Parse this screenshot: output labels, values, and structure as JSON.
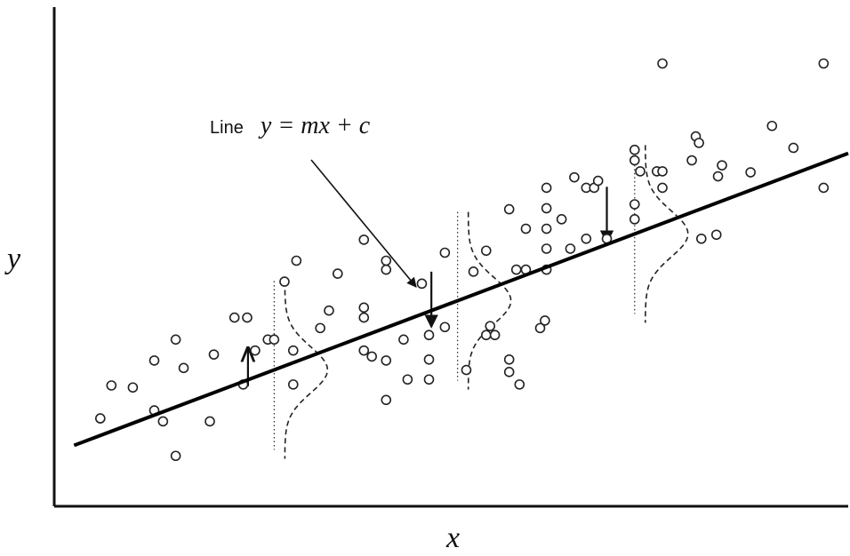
{
  "annotation": {
    "prefix": "Line",
    "equation": "y = mx + c"
  },
  "axes": {
    "x_label": "x",
    "y_label": "y"
  },
  "chart_data": {
    "type": "scatter",
    "xlim": [
      0,
      100
    ],
    "ylim": [
      0,
      100
    ],
    "regression": {
      "slope": 0.6,
      "intercept": 10.7
    },
    "points": [
      [
        5.8,
        17.6
      ],
      [
        7.2,
        24.2
      ],
      [
        9.9,
        23.8
      ],
      [
        12.6,
        19.2
      ],
      [
        12.6,
        29.2
      ],
      [
        13.7,
        17.0
      ],
      [
        15.3,
        33.4
      ],
      [
        15.3,
        10.1
      ],
      [
        16.3,
        27.7
      ],
      [
        19.6,
        17.0
      ],
      [
        20.1,
        30.4
      ],
      [
        22.7,
        37.8
      ],
      [
        23.8,
        24.4
      ],
      [
        24.3,
        37.8
      ],
      [
        25.3,
        31.2
      ],
      [
        26.9,
        33.4
      ],
      [
        27.7,
        33.4
      ],
      [
        29.0,
        45.0
      ],
      [
        30.1,
        24.4
      ],
      [
        30.1,
        31.2
      ],
      [
        30.5,
        49.2
      ],
      [
        33.5,
        35.7
      ],
      [
        35.7,
        46.6
      ],
      [
        39.0,
        53.4
      ],
      [
        39.0,
        39.8
      ],
      [
        39.0,
        37.8
      ],
      [
        39.0,
        31.2
      ],
      [
        41.8,
        47.4
      ],
      [
        41.8,
        49.2
      ],
      [
        41.8,
        29.2
      ],
      [
        41.8,
        21.3
      ],
      [
        44.5,
        25.4
      ],
      [
        46.3,
        44.6
      ],
      [
        47.2,
        34.3
      ],
      [
        47.2,
        29.4
      ],
      [
        47.2,
        25.4
      ],
      [
        49.2,
        35.9
      ],
      [
        49.2,
        50.8
      ],
      [
        51.9,
        27.3
      ],
      [
        52.8,
        47.0
      ],
      [
        54.4,
        51.2
      ],
      [
        54.4,
        34.3
      ],
      [
        54.9,
        36.1
      ],
      [
        55.5,
        34.3
      ],
      [
        57.3,
        59.5
      ],
      [
        57.3,
        29.4
      ],
      [
        57.3,
        26.9
      ],
      [
        58.2,
        47.4
      ],
      [
        59.4,
        47.4
      ],
      [
        59.4,
        55.6
      ],
      [
        61.2,
        35.7
      ],
      [
        61.8,
        37.2
      ],
      [
        62.0,
        55.6
      ],
      [
        62.0,
        59.7
      ],
      [
        62.0,
        63.8
      ],
      [
        62.0,
        51.6
      ],
      [
        62.0,
        47.4
      ],
      [
        63.9,
        57.5
      ],
      [
        65.0,
        51.6
      ],
      [
        65.5,
        65.9
      ],
      [
        67.0,
        53.6
      ],
      [
        67.0,
        63.8
      ],
      [
        68.0,
        63.8
      ],
      [
        68.5,
        65.2
      ],
      [
        69.6,
        53.6
      ],
      [
        73.1,
        60.5
      ],
      [
        73.1,
        57.5
      ],
      [
        73.1,
        71.4
      ],
      [
        73.1,
        69.3
      ],
      [
        73.8,
        67.1
      ],
      [
        75.9,
        67.1
      ],
      [
        76.6,
        67.1
      ],
      [
        76.6,
        63.8
      ],
      [
        76.6,
        88.7
      ],
      [
        80.3,
        69.3
      ],
      [
        80.8,
        74.1
      ],
      [
        81.2,
        72.8
      ],
      [
        81.5,
        53.6
      ],
      [
        83.4,
        54.4
      ],
      [
        83.6,
        66.1
      ],
      [
        84.1,
        68.3
      ],
      [
        87.7,
        66.9
      ],
      [
        90.4,
        76.2
      ],
      [
        93.1,
        71.8
      ],
      [
        96.9,
        88.7
      ],
      [
        96.9,
        63.8
      ],
      [
        44.0,
        33.4
      ],
      [
        34.6,
        39.2
      ],
      [
        40.0,
        30.0
      ],
      [
        58.6,
        24.4
      ]
    ],
    "distributions": [
      {
        "x": 27.7,
        "mean": 26.6,
        "obs_near": 45.0,
        "obs": 37.4,
        "arrow_to": 23.2
      },
      {
        "x": 50.8,
        "mean": 40.0,
        "obs_near": 49.2,
        "obs": 48.5,
        "arrow_to": 36.1
      },
      {
        "x": 73.1,
        "mean": 53.6,
        "obs_near": 71.4,
        "obs": 65.9,
        "arrow_to": 55.6
      }
    ]
  }
}
